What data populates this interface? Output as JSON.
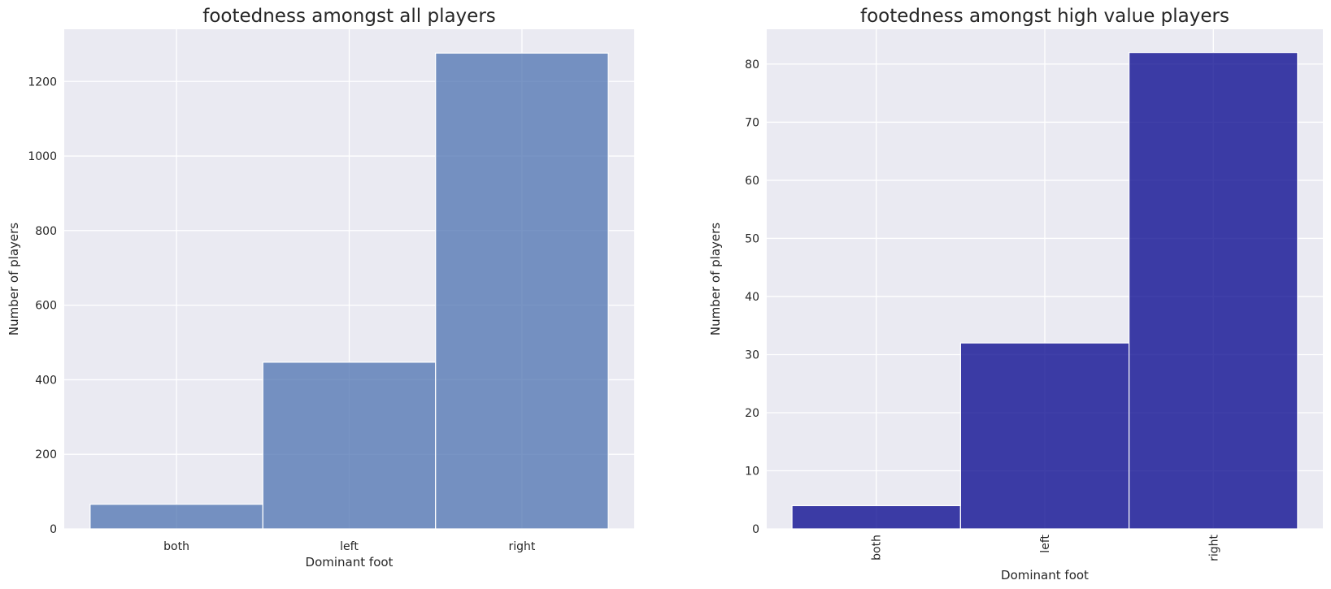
{
  "chart_data": [
    {
      "type": "bar",
      "title": "footedness amongst all players",
      "xlabel": "Dominant foot",
      "ylabel": "Number of players",
      "categories": [
        "both",
        "left",
        "right"
      ],
      "values": [
        66,
        447,
        1276
      ],
      "ylim": [
        0,
        1340
      ],
      "yticks": [
        0,
        200,
        400,
        600,
        800,
        1000,
        1200
      ],
      "tick_rotation": 0,
      "bar_color": "#4c72b0",
      "bar_alpha": 0.75,
      "grid": true,
      "background": "#eaeaf2"
    },
    {
      "type": "bar",
      "title": "footedness amongst high value players",
      "xlabel": "Dominant foot",
      "ylabel": "Number of players",
      "categories": [
        "both",
        "left",
        "right"
      ],
      "values": [
        4,
        32,
        82
      ],
      "ylim": [
        0,
        86
      ],
      "yticks": [
        0,
        10,
        20,
        30,
        40,
        50,
        60,
        70,
        80
      ],
      "tick_rotation": -90,
      "bar_color": "#00008b",
      "bar_alpha": 0.75,
      "grid": true,
      "background": "#eaeaf2"
    }
  ]
}
